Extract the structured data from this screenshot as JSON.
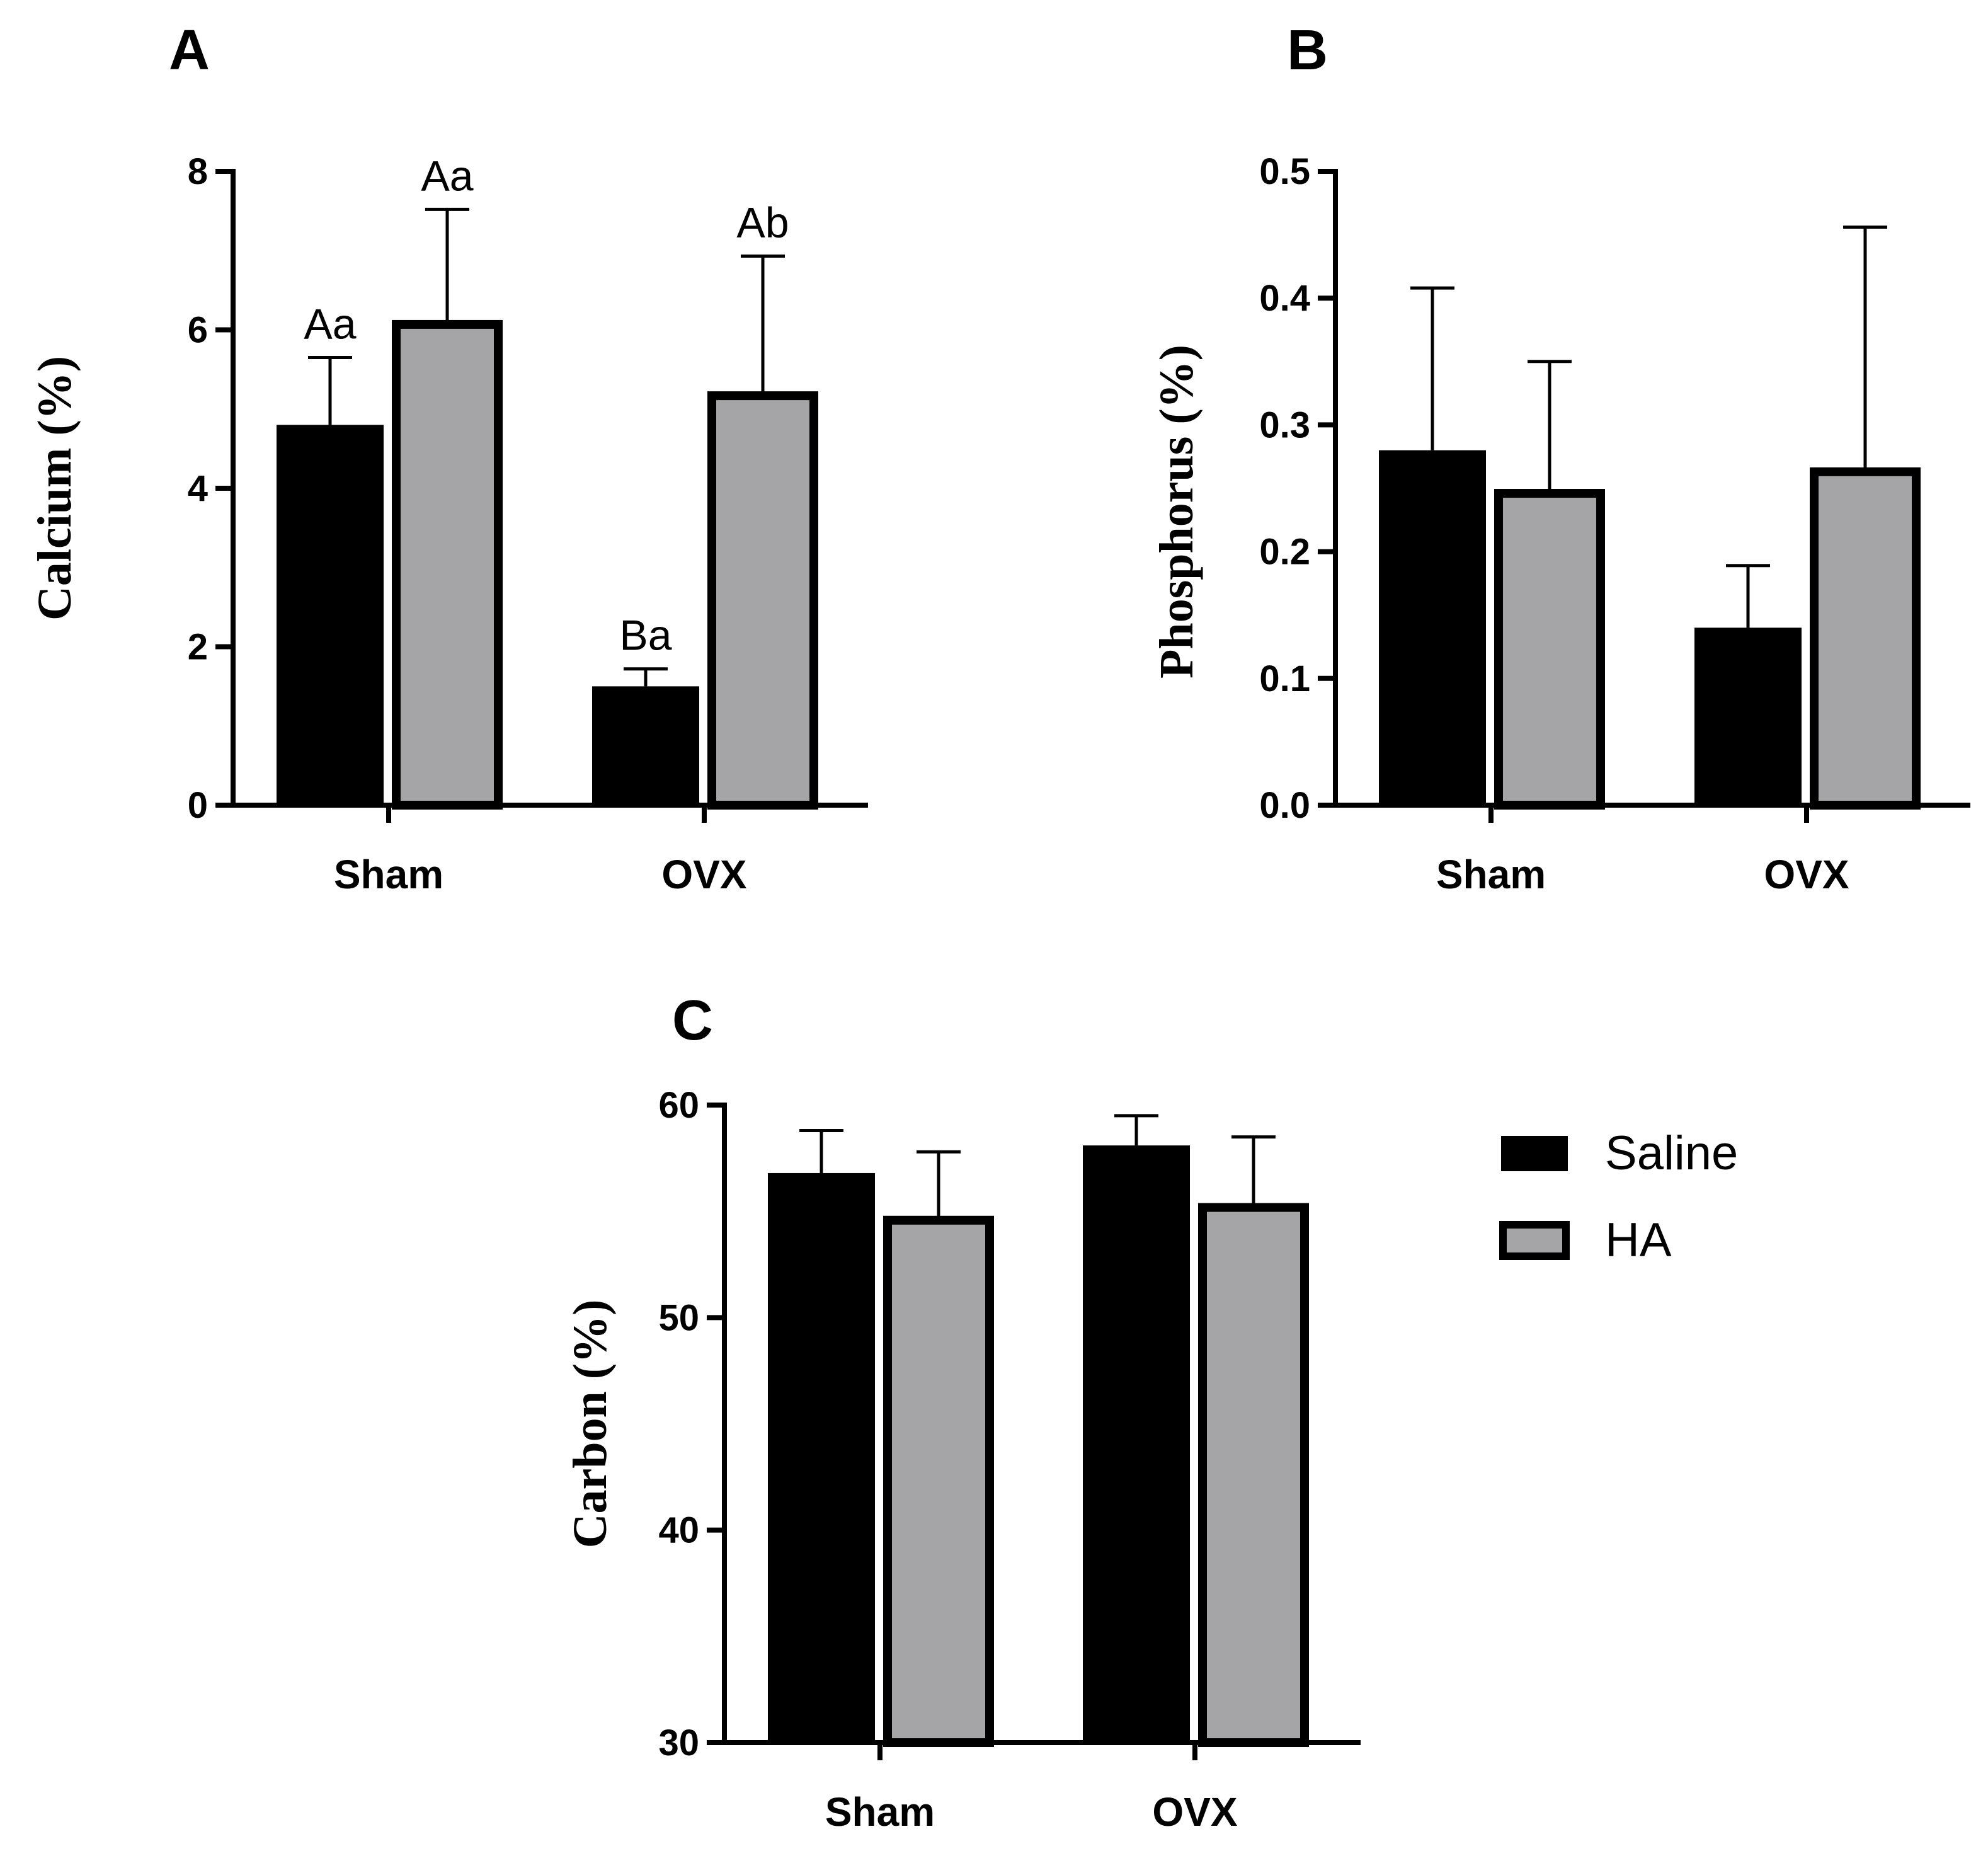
{
  "legend": {
    "items": [
      {
        "label": "Saline",
        "color": "#000000"
      },
      {
        "label": "HA",
        "color": "#a5a5a8"
      }
    ]
  },
  "chart_data": [
    {
      "type": "bar",
      "panel": "A",
      "title": "",
      "xlabel": "",
      "ylabel": "Calcium (%)",
      "ylim": [
        0,
        8
      ],
      "yticks": [
        "0",
        "2",
        "4",
        "6",
        "8"
      ],
      "categories": [
        "Sham",
        "OVX"
      ],
      "series": [
        {
          "name": "Saline",
          "values": [
            4.8,
            1.5
          ],
          "errors": [
            0.85,
            0.22
          ],
          "labels": [
            "Aa",
            "Ba"
          ]
        },
        {
          "name": "HA",
          "values": [
            6.1,
            5.2
          ],
          "errors": [
            1.42,
            1.73
          ],
          "labels": [
            "Aa",
            "Ab"
          ]
        }
      ]
    },
    {
      "type": "bar",
      "panel": "B",
      "title": "",
      "xlabel": "",
      "ylabel": "Phosphorus (%)",
      "ylim": [
        0,
        0.5
      ],
      "yticks": [
        "0.0",
        "0.1",
        "0.2",
        "0.3",
        "0.4",
        "0.5"
      ],
      "categories": [
        "Sham",
        "OVX"
      ],
      "series": [
        {
          "name": "Saline",
          "values": [
            0.28,
            0.14
          ],
          "errors": [
            0.128,
            0.049
          ],
          "labels": [
            "",
            ""
          ]
        },
        {
          "name": "HA",
          "values": [
            0.248,
            0.265
          ],
          "errors": [
            0.102,
            0.191
          ],
          "labels": [
            "",
            ""
          ]
        }
      ]
    },
    {
      "type": "bar",
      "panel": "C",
      "title": "",
      "xlabel": "",
      "ylabel": "Carbon (%)",
      "ylim": [
        30,
        60
      ],
      "yticks": [
        "30",
        "40",
        "50",
        "60"
      ],
      "categories": [
        "Sham",
        "OVX"
      ],
      "series": [
        {
          "name": "Saline",
          "values": [
            56.8,
            58.1
          ],
          "errors": [
            2.0,
            1.4
          ],
          "labels": [
            "",
            ""
          ]
        },
        {
          "name": "HA",
          "values": [
            54.7,
            55.3
          ],
          "errors": [
            3.1,
            3.2
          ],
          "labels": [
            "",
            ""
          ]
        }
      ]
    }
  ]
}
